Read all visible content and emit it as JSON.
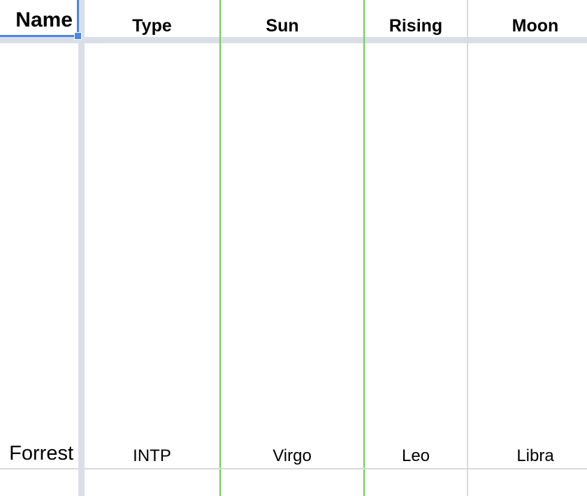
{
  "header": {
    "name": "Name",
    "type": "Type",
    "sun": "Sun",
    "rising": "Rising",
    "moon": "Moon"
  },
  "rows": [
    {
      "name": "Forrest",
      "type": "INTP",
      "sun": "Virgo",
      "rising": "Leo",
      "moon": "Libra"
    }
  ],
  "colors": {
    "selection": "#4a86e8",
    "frozen_bar": "#dadfe7",
    "border_green": "#67d04a",
    "grid_gray": "#d9d9d9"
  }
}
